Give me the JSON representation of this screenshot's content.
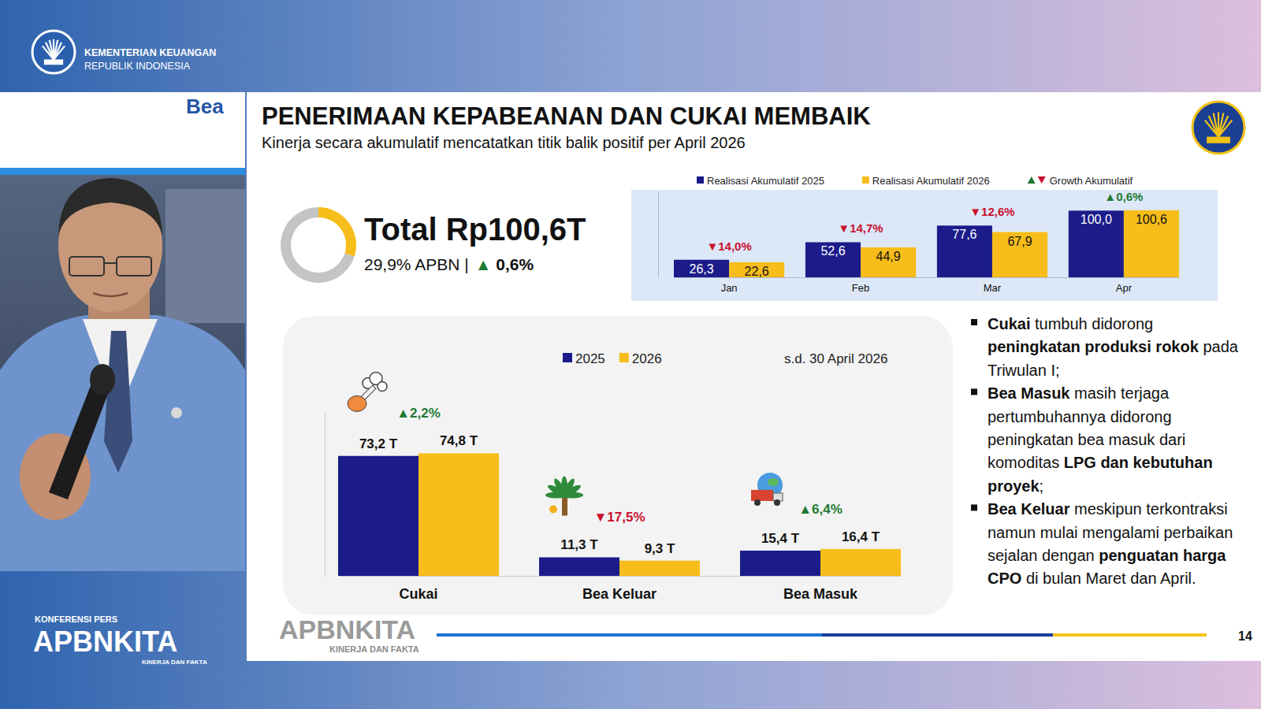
{
  "header": {
    "org_line1": "KEMENTERIAN KEUANGAN",
    "org_line2": "REPUBLIK INDONESIA"
  },
  "side_panel": {
    "top_text": "Bea",
    "event_label": "KONFERENSI PERS",
    "event_name": "APBNKITA",
    "event_tagline": "KINERJA DAN FAKTA"
  },
  "slide": {
    "title": "PENERIMAAN KEPABEANAN DAN CUKAI MEMBAIK",
    "subtitle": "Kinerja secara akumulatif mencatatkan titik balik positif per April 2026",
    "bullets": [
      [
        {
          "text": "Cukai",
          "bold": true
        },
        {
          "text": " tumbuh didorong ",
          "bold": false
        },
        {
          "text": "peningkatan produksi rokok",
          "bold": true
        },
        {
          "text": " pada Triwulan I;",
          "bold": false
        }
      ],
      [
        {
          "text": "Bea Masuk",
          "bold": true
        },
        {
          "text": " masih terjaga pertumbuhannya didorong peningkatan bea masuk dari komoditas ",
          "bold": false
        },
        {
          "text": "LPG dan kebutuhan proyek",
          "bold": true
        },
        {
          "text": ";",
          "bold": false
        }
      ],
      [
        {
          "text": "Bea Keluar",
          "bold": true
        },
        {
          "text": " meskipun terkontraksi namun mulai mengalami perbaikan sejalan dengan ",
          "bold": false
        },
        {
          "text": "penguatan harga CPO",
          "bold": true
        },
        {
          "text": " di bulan Maret dan April.",
          "bold": false
        }
      ]
    ],
    "footer_logo": "APBNKITA",
    "footer_tagline": "KINERJA DAN FAKTA",
    "page_number": 14
  },
  "chart_data": [
    {
      "type": "donut",
      "title": "Total Rp100,6T",
      "subtitle": "29,9% APBN |",
      "values": [
        29.9,
        70.1
      ],
      "colors": [
        "#f7bd1a",
        "#c4c4c4"
      ],
      "growth": 0.6,
      "growth_label": "▲ 0,6%"
    },
    {
      "type": "bar",
      "categories": [
        "Jan",
        "Feb",
        "Mar",
        "Apr"
      ],
      "series": [
        {
          "name": "Realisasi Akumulatif 2025",
          "color": "#1b1c8a",
          "values": [
            26.3,
            52.6,
            77.6,
            100.0
          ],
          "value_labels": [
            "26,3",
            "52,6",
            "77,6",
            "100,0"
          ]
        },
        {
          "name": "Realisasi Akumulatif 2026",
          "color": "#f7bd1a",
          "values": [
            22.6,
            44.9,
            67.9,
            100.6
          ],
          "value_labels": [
            "22,6",
            "44,9",
            "67,9",
            "100,6"
          ]
        }
      ],
      "growth": [
        -14.0,
        -14.7,
        -12.6,
        0.6
      ],
      "growth_labels": [
        "▼14,0%",
        "▼14,7%",
        "▼12,6%",
        "▲0,6%"
      ],
      "growth_legend": "Growth Akumulatif",
      "ylim": [
        0,
        130
      ],
      "tick_labels": "x",
      "data_labels": true,
      "legend": "top"
    },
    {
      "type": "bar",
      "categories": [
        "Cukai",
        "Bea Keluar",
        "Bea Masuk"
      ],
      "series": [
        {
          "name": "2025",
          "color": "#1b1c8a",
          "values": [
            73.2,
            11.3,
            15.4
          ],
          "value_labels": [
            "73,2 T",
            "11,3 T",
            "15,4 T"
          ]
        },
        {
          "name": "2026",
          "color": "#f7bd1a",
          "values": [
            74.8,
            9.3,
            16.4
          ],
          "value_labels": [
            "74,8 T",
            "9,3 T",
            "16,4 T"
          ]
        }
      ],
      "growth": [
        2.2,
        -17.5,
        6.4
      ],
      "growth_labels": [
        "▲2,2%",
        "▼17,5%",
        "▲6,4%"
      ],
      "annotation": "s.d. 30 April 2026",
      "ylim": [
        0,
        100
      ],
      "tick_labels": "x",
      "data_labels": true,
      "legend": "top"
    }
  ]
}
